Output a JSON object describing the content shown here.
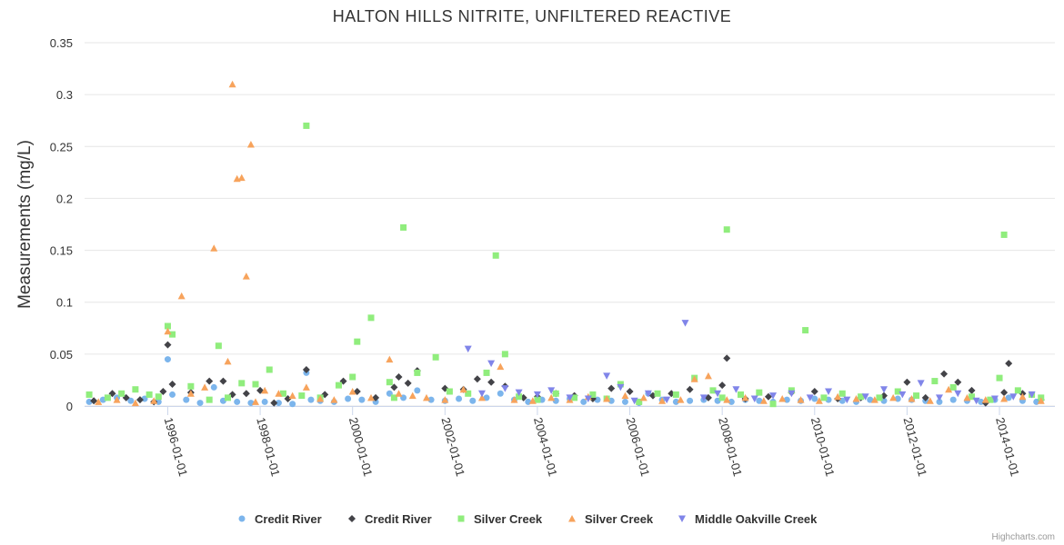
{
  "chart_data": {
    "type": "scatter",
    "title": "HALTON HILLS NITRITE, UNFILTERED REACTIVE",
    "xlabel": "",
    "ylabel": "Measurements (mg/L)",
    "ylim": [
      0,
      0.35
    ],
    "yticks": [
      0,
      0.05,
      0.1,
      0.15,
      0.2,
      0.25,
      0.3,
      0.35
    ],
    "ytick_labels": [
      "0",
      "0.05",
      "0.1",
      "0.15",
      "0.2",
      "0.25",
      "0.3",
      "0.35"
    ],
    "xlim": [
      1994.2,
      2015.2
    ],
    "xticks": [
      1996,
      1998,
      2000,
      2002,
      2004,
      2006,
      2008,
      2010,
      2012,
      2014
    ],
    "xtick_labels": [
      "1996-01-01",
      "1998-01-01",
      "2000-01-01",
      "2002-01-01",
      "2004-01-01",
      "2006-01-01",
      "2008-01-01",
      "2010-01-01",
      "2012-01-01",
      "2014-01-01"
    ],
    "grid": true,
    "legend_position": "bottom-center",
    "series": [
      {
        "name": "Credit River",
        "marker": "circle",
        "color": "#7cb5ec",
        "x": [
          1994.3,
          1994.6,
          1994.9,
          1995.2,
          1995.5,
          1995.8,
          1996.0,
          1996.1,
          1996.4,
          1996.7,
          1997.0,
          1997.2,
          1997.5,
          1997.8,
          1998.1,
          1998.4,
          1998.7,
          1999.0,
          1999.1,
          1999.3,
          1999.6,
          1999.9,
          2000.2,
          2000.5,
          2000.8,
          2001.1,
          2001.4,
          2001.7,
          2002.0,
          2002.3,
          2002.6,
          2002.9,
          2003.2,
          2003.5,
          2003.8,
          2004.1,
          2004.4,
          2004.7,
          2005.0,
          2005.3,
          2005.6,
          2005.9,
          2006.2,
          2006.4,
          2006.7,
          2007.0,
          2007.3,
          2007.6,
          2007.9,
          2008.2,
          2008.5,
          2008.8,
          2009.1,
          2009.4,
          2009.7,
          2010.0,
          2010.3,
          2010.6,
          2010.9,
          2011.2,
          2011.5,
          2011.8,
          2012.1,
          2012.4,
          2012.7,
          2013.0,
          2013.3,
          2013.6,
          2013.9,
          2014.2,
          2014.5,
          2014.8
        ],
        "y": [
          0.004,
          0.006,
          0.008,
          0.005,
          0.007,
          0.004,
          0.045,
          0.011,
          0.006,
          0.003,
          0.018,
          0.005,
          0.004,
          0.003,
          0.004,
          0.003,
          0.002,
          0.032,
          0.006,
          0.005,
          0.004,
          0.007,
          0.006,
          0.004,
          0.012,
          0.008,
          0.015,
          0.006,
          0.005,
          0.007,
          0.005,
          0.008,
          0.012,
          0.006,
          0.004,
          0.006,
          0.005,
          0.007,
          0.004,
          0.006,
          0.005,
          0.004,
          0.003,
          0.012,
          0.006,
          0.004,
          0.005,
          0.006,
          0.005,
          0.004,
          0.006,
          0.005,
          0.004,
          0.006,
          0.005,
          0.007,
          0.006,
          0.005,
          0.004,
          0.006,
          0.005,
          0.007,
          0.006,
          0.005,
          0.004,
          0.006,
          0.005,
          0.004,
          0.006,
          0.008,
          0.005,
          0.004
        ]
      },
      {
        "name": "Credit River",
        "marker": "diamond",
        "color": "#434348",
        "x": [
          1994.4,
          1994.8,
          1995.1,
          1995.4,
          1995.7,
          1995.9,
          1996.0,
          1996.1,
          1996.5,
          1996.9,
          1997.2,
          1997.4,
          1997.7,
          1998.0,
          1998.3,
          1998.6,
          1999.0,
          1999.4,
          1999.8,
          2000.1,
          2000.5,
          2000.9,
          2001.0,
          2001.2,
          2001.4,
          2002.0,
          2002.4,
          2002.7,
          2003.0,
          2003.3,
          2003.7,
          2004.0,
          2004.4,
          2004.8,
          2005.2,
          2005.6,
          2006.0,
          2006.5,
          2006.9,
          2007.3,
          2007.7,
          2008.0,
          2008.1,
          2008.5,
          2009.0,
          2009.5,
          2010.0,
          2010.5,
          2011.0,
          2011.5,
          2012.0,
          2012.4,
          2012.8,
          2013.1,
          2013.4,
          2013.7,
          2014.1,
          2014.2,
          2014.5,
          2014.9
        ],
        "y": [
          0.005,
          0.012,
          0.008,
          0.006,
          0.004,
          0.014,
          0.059,
          0.021,
          0.013,
          0.024,
          0.024,
          0.011,
          0.012,
          0.015,
          0.003,
          0.007,
          0.035,
          0.011,
          0.024,
          0.014,
          0.008,
          0.018,
          0.028,
          0.022,
          0.034,
          0.017,
          0.016,
          0.026,
          0.023,
          0.019,
          0.008,
          0.009,
          0.012,
          0.01,
          0.007,
          0.017,
          0.014,
          0.01,
          0.012,
          0.016,
          0.008,
          0.02,
          0.046,
          0.007,
          0.009,
          0.013,
          0.014,
          0.007,
          0.008,
          0.01,
          0.023,
          0.008,
          0.031,
          0.023,
          0.015,
          0.003,
          0.013,
          0.041,
          0.012,
          0.006
        ]
      },
      {
        "name": "Silver Creek",
        "marker": "square",
        "color": "#90ed7d",
        "x": [
          1994.3,
          1994.7,
          1995.0,
          1995.3,
          1995.6,
          1995.8,
          1996.0,
          1996.1,
          1996.5,
          1996.9,
          1997.1,
          1997.3,
          1997.6,
          1997.9,
          1998.2,
          1998.5,
          1998.9,
          1999.0,
          1999.3,
          1999.7,
          2000.0,
          2000.1,
          2000.4,
          2000.8,
          2000.9,
          2001.1,
          2001.4,
          2001.8,
          2002.1,
          2002.5,
          2002.9,
          2003.1,
          2003.3,
          2003.6,
          2004.0,
          2004.4,
          2004.8,
          2005.2,
          2005.5,
          2005.8,
          2006.2,
          2006.6,
          2007.0,
          2007.4,
          2007.8,
          2008.0,
          2008.1,
          2008.4,
          2008.8,
          2009.1,
          2009.5,
          2009.8,
          2010.2,
          2010.6,
          2011.0,
          2011.4,
          2011.8,
          2012.2,
          2012.6,
          2013.0,
          2013.4,
          2013.8,
          2014.0,
          2014.1,
          2014.4,
          2014.7,
          2014.9
        ],
        "y": [
          0.011,
          0.008,
          0.012,
          0.016,
          0.011,
          0.009,
          0.077,
          0.069,
          0.019,
          0.006,
          0.058,
          0.008,
          0.022,
          0.021,
          0.035,
          0.012,
          0.01,
          0.27,
          0.008,
          0.02,
          0.028,
          0.062,
          0.085,
          0.023,
          0.008,
          0.172,
          0.032,
          0.047,
          0.014,
          0.012,
          0.032,
          0.145,
          0.05,
          0.009,
          0.006,
          0.012,
          0.008,
          0.011,
          0.007,
          0.021,
          0.004,
          0.012,
          0.011,
          0.027,
          0.015,
          0.008,
          0.17,
          0.011,
          0.013,
          0.002,
          0.015,
          0.073,
          0.008,
          0.012,
          0.009,
          0.008,
          0.014,
          0.01,
          0.024,
          0.018,
          0.009,
          0.006,
          0.027,
          0.165,
          0.015,
          0.011,
          0.008
        ]
      },
      {
        "name": "Silver Creek",
        "marker": "triangle",
        "color": "#f7a35c",
        "x": [
          1994.5,
          1994.9,
          1995.3,
          1995.7,
          1996.0,
          1996.3,
          1996.5,
          1996.8,
          1997.0,
          1997.3,
          1997.4,
          1997.5,
          1997.6,
          1997.7,
          1997.8,
          1997.9,
          1998.1,
          1998.4,
          1998.7,
          1999.0,
          1999.3,
          1999.6,
          2000.0,
          2000.4,
          2000.8,
          2001.0,
          2001.3,
          2001.6,
          2002.0,
          2002.4,
          2002.8,
          2003.2,
          2003.5,
          2003.9,
          2004.3,
          2004.7,
          2005.1,
          2005.5,
          2005.9,
          2006.3,
          2006.7,
          2007.1,
          2007.4,
          2007.7,
          2008.1,
          2008.5,
          2008.9,
          2009.3,
          2009.7,
          2010.1,
          2010.5,
          2010.9,
          2011.3,
          2011.7,
          2012.1,
          2012.5,
          2012.9,
          2013.3,
          2013.7,
          2014.1,
          2014.5,
          2014.9
        ],
        "y": [
          0.004,
          0.006,
          0.003,
          0.005,
          0.072,
          0.106,
          0.012,
          0.018,
          0.152,
          0.043,
          0.31,
          0.219,
          0.22,
          0.125,
          0.252,
          0.004,
          0.015,
          0.012,
          0.01,
          0.018,
          0.007,
          0.006,
          0.014,
          0.008,
          0.045,
          0.012,
          0.01,
          0.008,
          0.006,
          0.016,
          0.008,
          0.038,
          0.006,
          0.005,
          0.008,
          0.006,
          0.009,
          0.007,
          0.01,
          0.008,
          0.005,
          0.006,
          0.026,
          0.029,
          0.006,
          0.008,
          0.005,
          0.007,
          0.006,
          0.005,
          0.009,
          0.007,
          0.006,
          0.008,
          0.007,
          0.005,
          0.016,
          0.008,
          0.006,
          0.007,
          0.009,
          0.005
        ]
      },
      {
        "name": "Middle Oakville Creek",
        "marker": "triangle-down",
        "color": "#8085e9",
        "x": [
          2002.5,
          2002.8,
          2003.0,
          2003.3,
          2003.6,
          2004.0,
          2004.3,
          2004.7,
          2005.1,
          2005.5,
          2005.8,
          2006.1,
          2006.4,
          2006.8,
          2007.2,
          2007.6,
          2007.9,
          2008.3,
          2008.7,
          2009.1,
          2009.5,
          2009.9,
          2010.3,
          2010.7,
          2011.1,
          2011.5,
          2011.9,
          2012.3,
          2012.7,
          2013.1,
          2013.5,
          2013.9,
          2014.3,
          2014.7
        ],
        "y": [
          0.055,
          0.012,
          0.041,
          0.017,
          0.013,
          0.011,
          0.015,
          0.008,
          0.007,
          0.029,
          0.018,
          0.005,
          0.012,
          0.006,
          0.08,
          0.008,
          0.012,
          0.016,
          0.007,
          0.01,
          0.012,
          0.008,
          0.014,
          0.006,
          0.009,
          0.016,
          0.011,
          0.022,
          0.008,
          0.012,
          0.005,
          0.007,
          0.009,
          0.011
        ]
      }
    ]
  },
  "credits": "Highcharts.com"
}
